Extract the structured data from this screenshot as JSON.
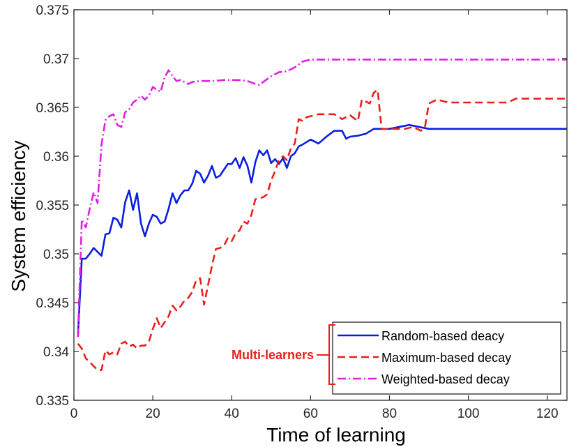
{
  "chart_data": {
    "type": "line",
    "xlabel": "Time of learning",
    "ylabel": "System efficiency",
    "xlim": [
      0,
      125
    ],
    "ylim": [
      0.335,
      0.375
    ],
    "xticks": [
      0,
      20,
      40,
      60,
      80,
      100,
      120
    ],
    "xtick_labels": [
      "0",
      "20",
      "40",
      "60",
      "80",
      "100",
      "120"
    ],
    "yticks": [
      0.335,
      0.34,
      0.345,
      0.35,
      0.355,
      0.36,
      0.365,
      0.37,
      0.375
    ],
    "ytick_labels": [
      "0.335",
      "0.34",
      "0.345",
      "0.35",
      "0.355",
      "0.36",
      "0.365",
      "0.37",
      "0.375"
    ],
    "grid": false,
    "legend_position": "bottom-right",
    "annotation": {
      "text": "Multi-learners",
      "color": "#e8201a"
    },
    "series": [
      {
        "name": "Random-based deacy",
        "color": "#0a1ee0",
        "style": "solid",
        "x": [
          1,
          2,
          3,
          4,
          5,
          6,
          7,
          8,
          9,
          10,
          11,
          12,
          13,
          14,
          15,
          16,
          17,
          18,
          19,
          20,
          21,
          22,
          23,
          24,
          25,
          26,
          27,
          28,
          29,
          30,
          31,
          32,
          33,
          34,
          35,
          36,
          37,
          38,
          39,
          40,
          41,
          42,
          43,
          44,
          45,
          46,
          47,
          48,
          49,
          50,
          51,
          52,
          53,
          54,
          55,
          56,
          57,
          58,
          60,
          62,
          64,
          66,
          68,
          69,
          70,
          72,
          74,
          76,
          80,
          85,
          90,
          100,
          110,
          120,
          125
        ],
        "y": [
          0.3415,
          0.3495,
          0.3495,
          0.35,
          0.3506,
          0.3502,
          0.3498,
          0.352,
          0.3521,
          0.3537,
          0.3535,
          0.3527,
          0.3553,
          0.3565,
          0.3545,
          0.3562,
          0.3531,
          0.3518,
          0.3531,
          0.354,
          0.3538,
          0.3531,
          0.3533,
          0.3546,
          0.3562,
          0.3552,
          0.356,
          0.3565,
          0.3565,
          0.3572,
          0.3585,
          0.3582,
          0.3573,
          0.358,
          0.359,
          0.3578,
          0.358,
          0.3586,
          0.3592,
          0.3592,
          0.3598,
          0.3588,
          0.3599,
          0.359,
          0.3573,
          0.3594,
          0.3606,
          0.3601,
          0.3606,
          0.3593,
          0.3597,
          0.3592,
          0.3598,
          0.3588,
          0.36,
          0.3603,
          0.361,
          0.3612,
          0.3617,
          0.3613,
          0.362,
          0.3626,
          0.3626,
          0.3618,
          0.362,
          0.3621,
          0.3623,
          0.3628,
          0.3628,
          0.3632,
          0.3628,
          0.3628,
          0.3628,
          0.3628,
          0.3628
        ]
      },
      {
        "name": "Maximum-based decay",
        "color": "#e8201a",
        "style": "dashed",
        "x": [
          1,
          2,
          3,
          4,
          5,
          6,
          7,
          8,
          9,
          10,
          11,
          12,
          13,
          14,
          15,
          16,
          17,
          18,
          19,
          20,
          21,
          22,
          23,
          24,
          25,
          26,
          27,
          28,
          29,
          30,
          31,
          32,
          33,
          34,
          35,
          36,
          37,
          38,
          39,
          40,
          41,
          42,
          43,
          44,
          45,
          46,
          47,
          48,
          49,
          50,
          51,
          52,
          53,
          54,
          55,
          56,
          57,
          58,
          59,
          60,
          62,
          64,
          66,
          68,
          70,
          72,
          73,
          75,
          76,
          77,
          78,
          80,
          84,
          86,
          88,
          89,
          90,
          92,
          95,
          100,
          105,
          110,
          112,
          120,
          125
        ],
        "y": [
          0.3408,
          0.3403,
          0.3393,
          0.3389,
          0.3385,
          0.3381,
          0.3381,
          0.3401,
          0.3397,
          0.3399,
          0.3397,
          0.3408,
          0.341,
          0.3405,
          0.3407,
          0.3403,
          0.3406,
          0.3406,
          0.341,
          0.3423,
          0.3434,
          0.3424,
          0.343,
          0.3436,
          0.3447,
          0.3442,
          0.3446,
          0.3452,
          0.3455,
          0.3461,
          0.3473,
          0.3475,
          0.3448,
          0.3468,
          0.3488,
          0.3505,
          0.3506,
          0.3508,
          0.3516,
          0.3513,
          0.3521,
          0.3524,
          0.3533,
          0.3531,
          0.354,
          0.3556,
          0.3557,
          0.3558,
          0.3561,
          0.3575,
          0.3585,
          0.3596,
          0.36,
          0.3596,
          0.3608,
          0.3613,
          0.3638,
          0.3636,
          0.364,
          0.3641,
          0.3643,
          0.3643,
          0.3643,
          0.3638,
          0.3642,
          0.3636,
          0.3658,
          0.3654,
          0.3665,
          0.3668,
          0.3628,
          0.3628,
          0.3628,
          0.363,
          0.3626,
          0.363,
          0.3654,
          0.3658,
          0.3655,
          0.3655,
          0.3655,
          0.3655,
          0.3659,
          0.3659,
          0.3659
        ]
      },
      {
        "name": "Weighted-based decay",
        "color": "#e020e0",
        "style": "dashdot",
        "x": [
          1,
          2,
          3,
          4,
          5,
          6,
          7,
          8,
          9,
          10,
          11,
          12,
          13,
          14,
          15,
          16,
          17,
          18,
          19,
          20,
          21,
          22,
          23,
          24,
          25,
          26,
          27,
          28,
          29,
          30,
          32,
          35,
          38,
          40,
          42,
          44,
          46,
          47,
          48,
          50,
          52,
          54,
          56,
          58,
          60,
          70,
          80,
          100,
          125
        ],
        "y": [
          0.3415,
          0.3535,
          0.3527,
          0.3546,
          0.3563,
          0.3552,
          0.3612,
          0.3637,
          0.3641,
          0.3643,
          0.3632,
          0.363,
          0.3645,
          0.3648,
          0.3655,
          0.3658,
          0.3662,
          0.3658,
          0.3662,
          0.3671,
          0.3668,
          0.3666,
          0.3681,
          0.3688,
          0.3682,
          0.3677,
          0.3678,
          0.3676,
          0.3674,
          0.3676,
          0.3677,
          0.3677,
          0.3678,
          0.3678,
          0.3678,
          0.3677,
          0.3674,
          0.3673,
          0.3676,
          0.3682,
          0.3686,
          0.3687,
          0.3691,
          0.3697,
          0.3699,
          0.3699,
          0.3699,
          0.3699,
          0.3699
        ]
      }
    ]
  }
}
